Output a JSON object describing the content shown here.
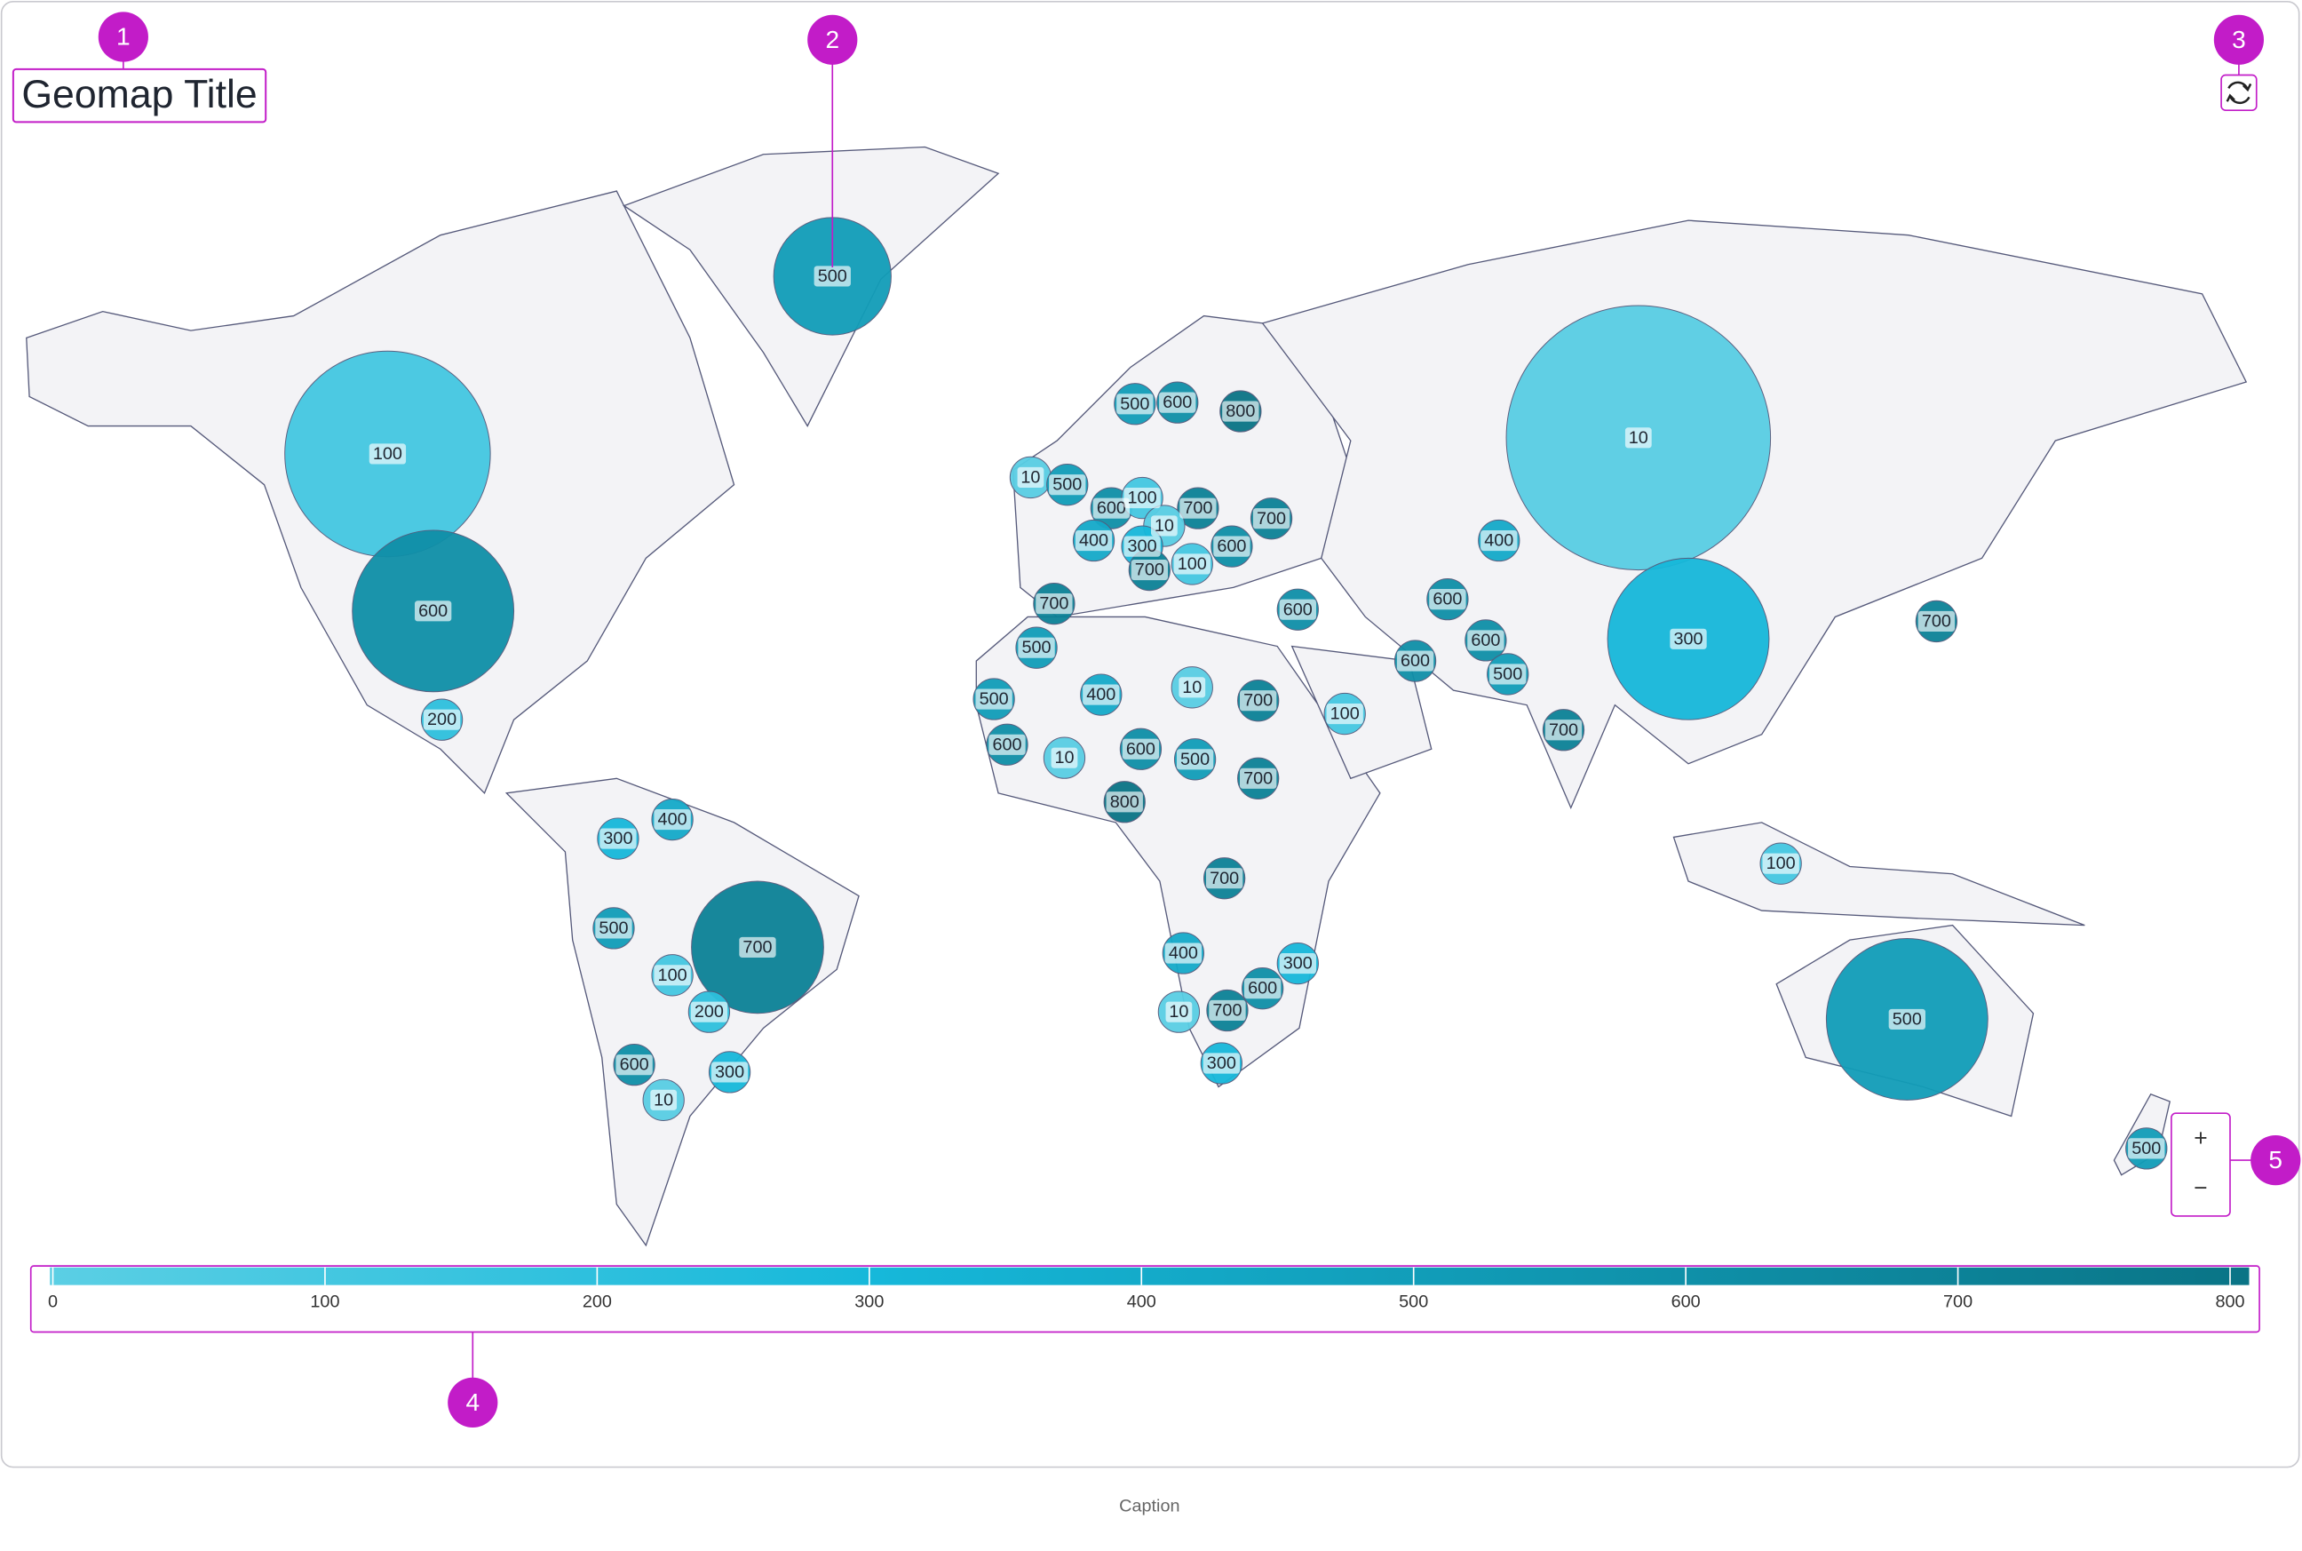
{
  "header": {
    "title": "Geomap Title"
  },
  "annotations": [
    "1",
    "2",
    "3",
    "4",
    "5"
  ],
  "map": {
    "labels": [
      500,
      100,
      600,
      200,
      10,
      500,
      500,
      600,
      800,
      600,
      100,
      700,
      10,
      700,
      400,
      300,
      600,
      700,
      100,
      10,
      400,
      700,
      600,
      600,
      600,
      500,
      300,
      700,
      600,
      500,
      400,
      10,
      700,
      100,
      500,
      700,
      600,
      10,
      600,
      500,
      700,
      800,
      400,
      300,
      700,
      500,
      700,
      100,
      400,
      300,
      100,
      600,
      200,
      10,
      700,
      500,
      600,
      300,
      300,
      10,
      500
    ]
  },
  "legend": {
    "range": [
      0,
      800
    ],
    "ticks": [
      0,
      100,
      200,
      300,
      400,
      500,
      600,
      700,
      800
    ]
  },
  "zoom": {
    "in": "+",
    "out": "−"
  },
  "caption": "Caption"
}
